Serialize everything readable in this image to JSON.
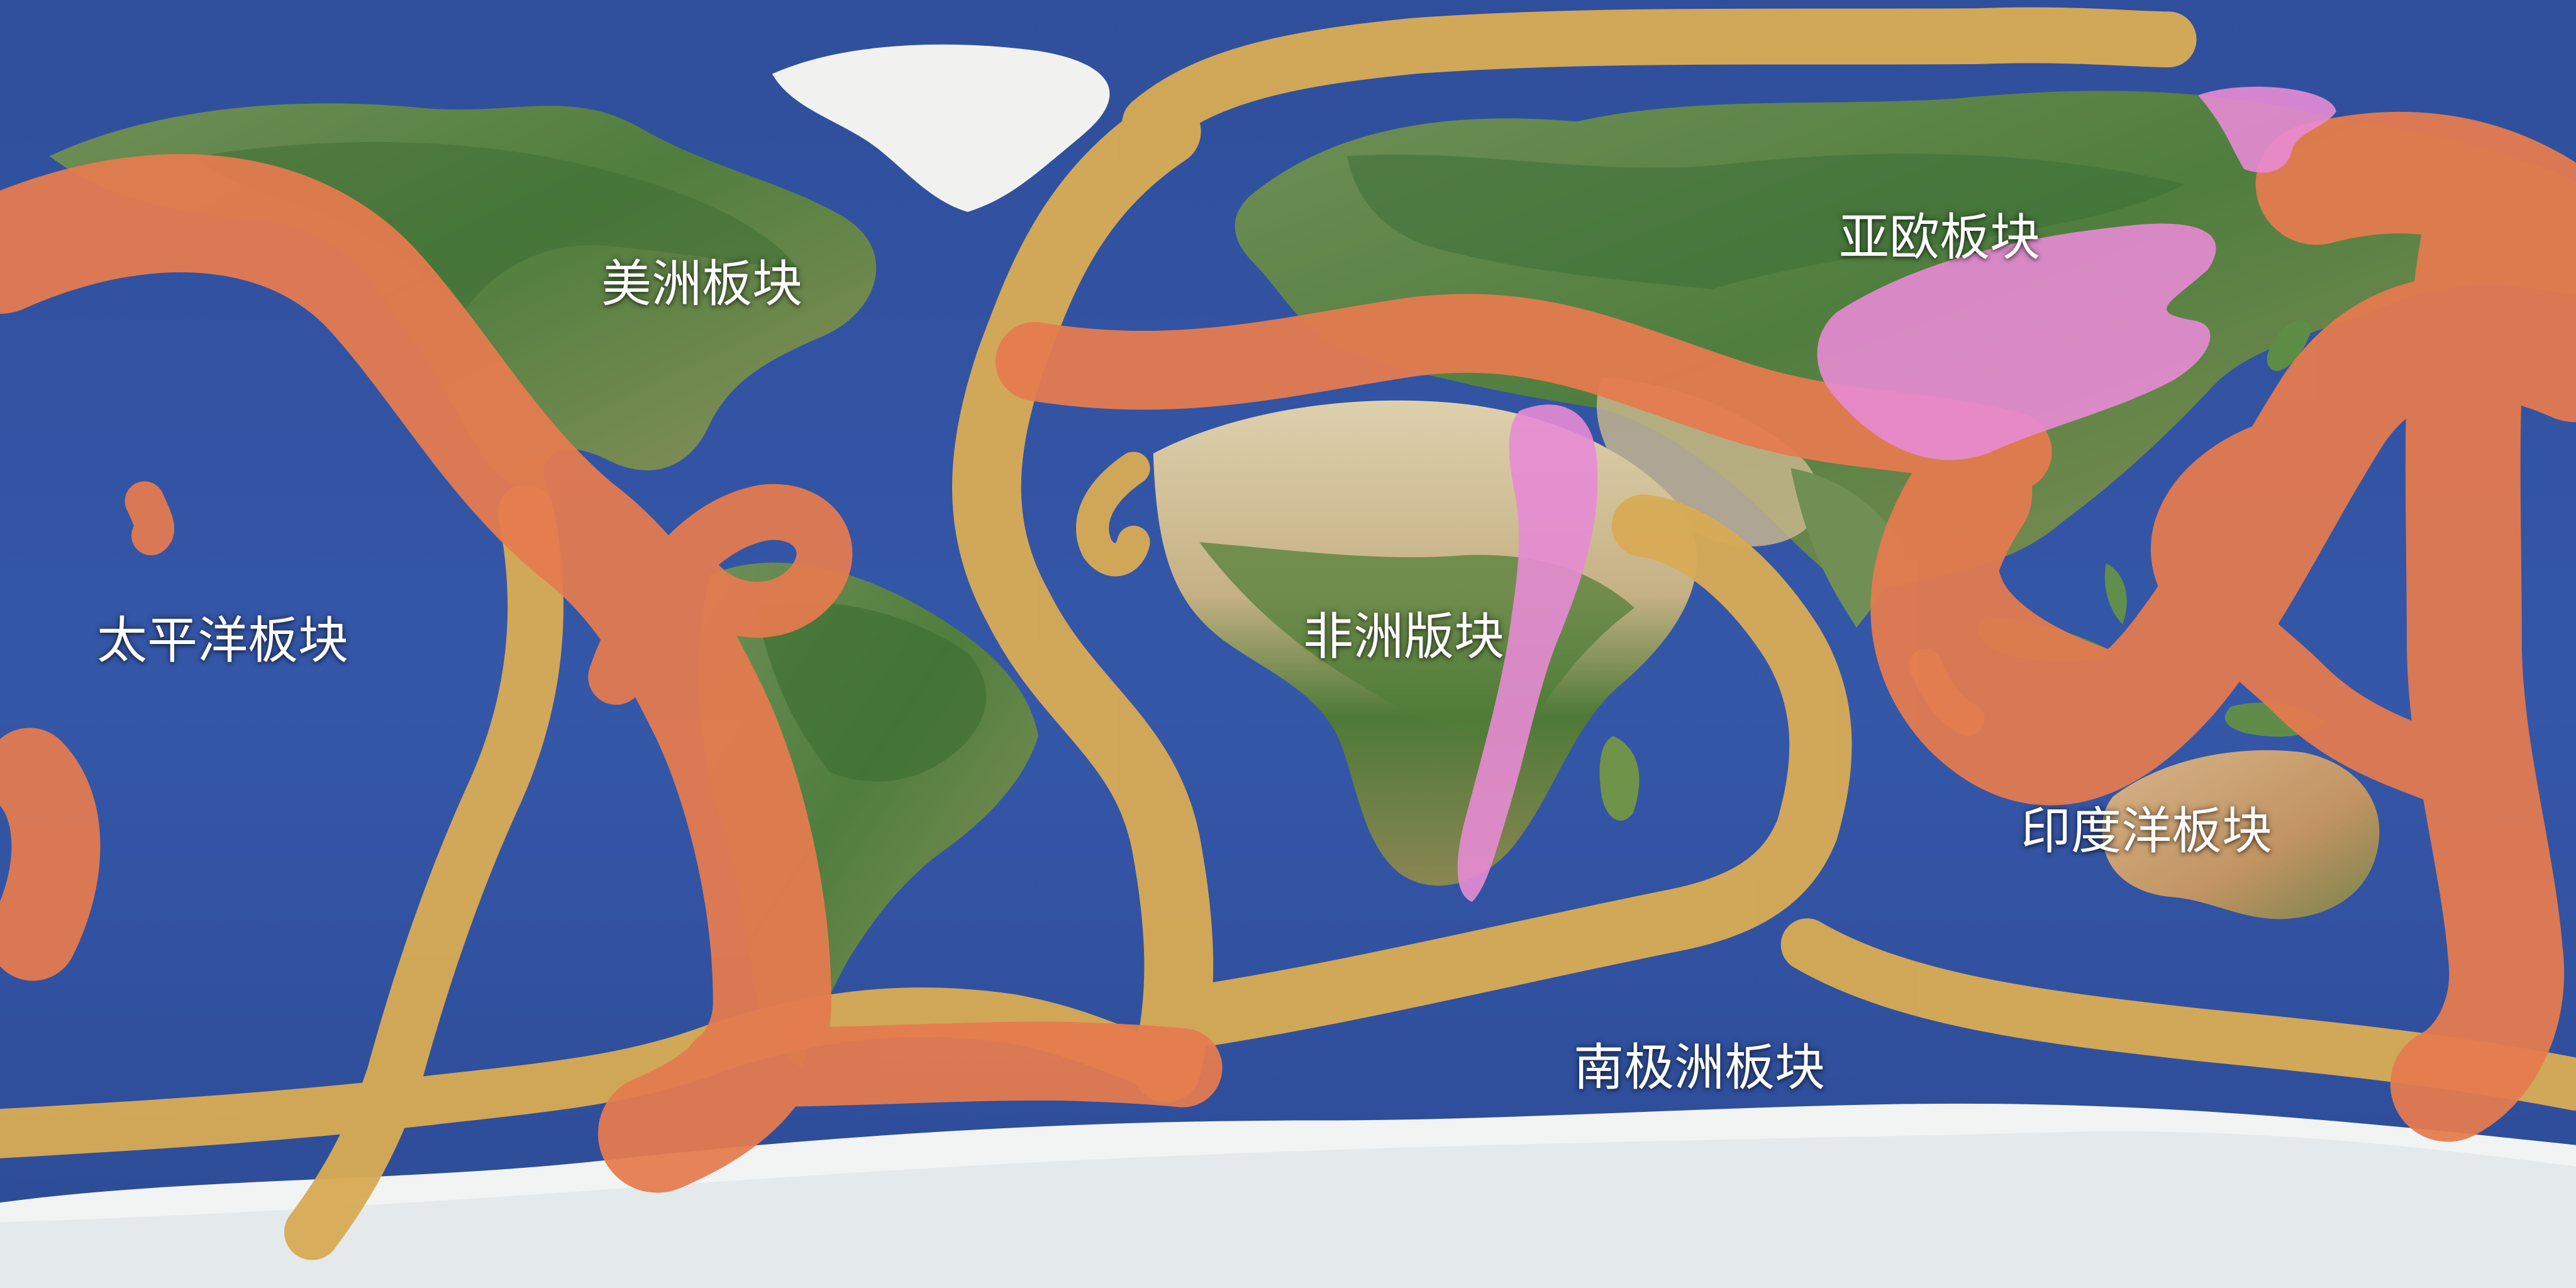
{
  "map": {
    "plates": [
      {
        "id": "pacific",
        "label": "太平洋板块"
      },
      {
        "id": "american",
        "label": "美洲板块"
      },
      {
        "id": "african",
        "label": "非洲版块"
      },
      {
        "id": "eurasian",
        "label": "亚欧板块"
      },
      {
        "id": "indian-ocean",
        "label": "印度洋板块"
      },
      {
        "id": "antarctic",
        "label": "南极洲板块"
      }
    ],
    "colors": {
      "ocean": "#3557a8",
      "ocean_deep": "#2a4994",
      "land_green": "#5f8f4a",
      "land_dark_green": "#3f6f35",
      "desert": "#d8c8a2",
      "ice": "#f0f2f2",
      "volcanic_belt": "#e47b4f",
      "ridge_belt": "#d7ab55",
      "rift_zone": "#e78bd4",
      "label_text": "#ffffff"
    }
  }
}
